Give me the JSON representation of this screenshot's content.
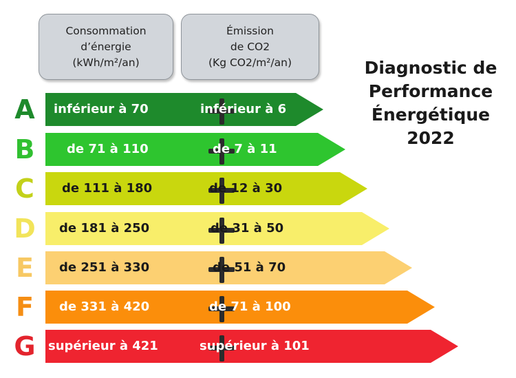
{
  "header": {
    "consumption": [
      "Consommation",
      "d’énergie",
      "(kWh/m²/an)"
    ],
    "emission": [
      "Émission",
      "de CO2",
      "(Kg CO2/m²/an)"
    ]
  },
  "title": [
    "Diagnostic de",
    "Performance",
    "Énergétique",
    "2022"
  ],
  "classes": [
    {
      "letter": "A",
      "energy": "inférieur à 70",
      "co2": "inférieur à 6",
      "color": "#1e8a2c",
      "letter_color": "#1e8a2c",
      "text_color": "#ffffff"
    },
    {
      "letter": "B",
      "energy": "de 71 à 110",
      "co2": "de 7 à 11",
      "color": "#2ec52f",
      "letter_color": "#31c031",
      "text_color": "#ffffff"
    },
    {
      "letter": "C",
      "energy": "de 111 à 180",
      "co2": "de 12 à 30",
      "color": "#c9d70e",
      "letter_color": "#c3d11a",
      "text_color": "#1a1a1a"
    },
    {
      "letter": "D",
      "energy": "de 181 à 250",
      "co2": "de 31 à 50",
      "color": "#f8ee6a",
      "letter_color": "#f2e45a",
      "text_color": "#1a1a1a"
    },
    {
      "letter": "E",
      "energy": "de 251 à 330",
      "co2": "de 51 à 70",
      "color": "#fcd072",
      "letter_color": "#f7c863",
      "text_color": "#1a1a1a"
    },
    {
      "letter": "F",
      "energy": "de 331 à 420",
      "co2": "de 71 à 100",
      "color": "#fb8e0b",
      "letter_color": "#f58e14",
      "text_color": "#ffffff"
    },
    {
      "letter": "G",
      "energy": "supérieur à 421",
      "co2": "supérieur à 101",
      "color": "#ef2430",
      "letter_color": "#e3242d",
      "text_color": "#ffffff"
    }
  ]
}
